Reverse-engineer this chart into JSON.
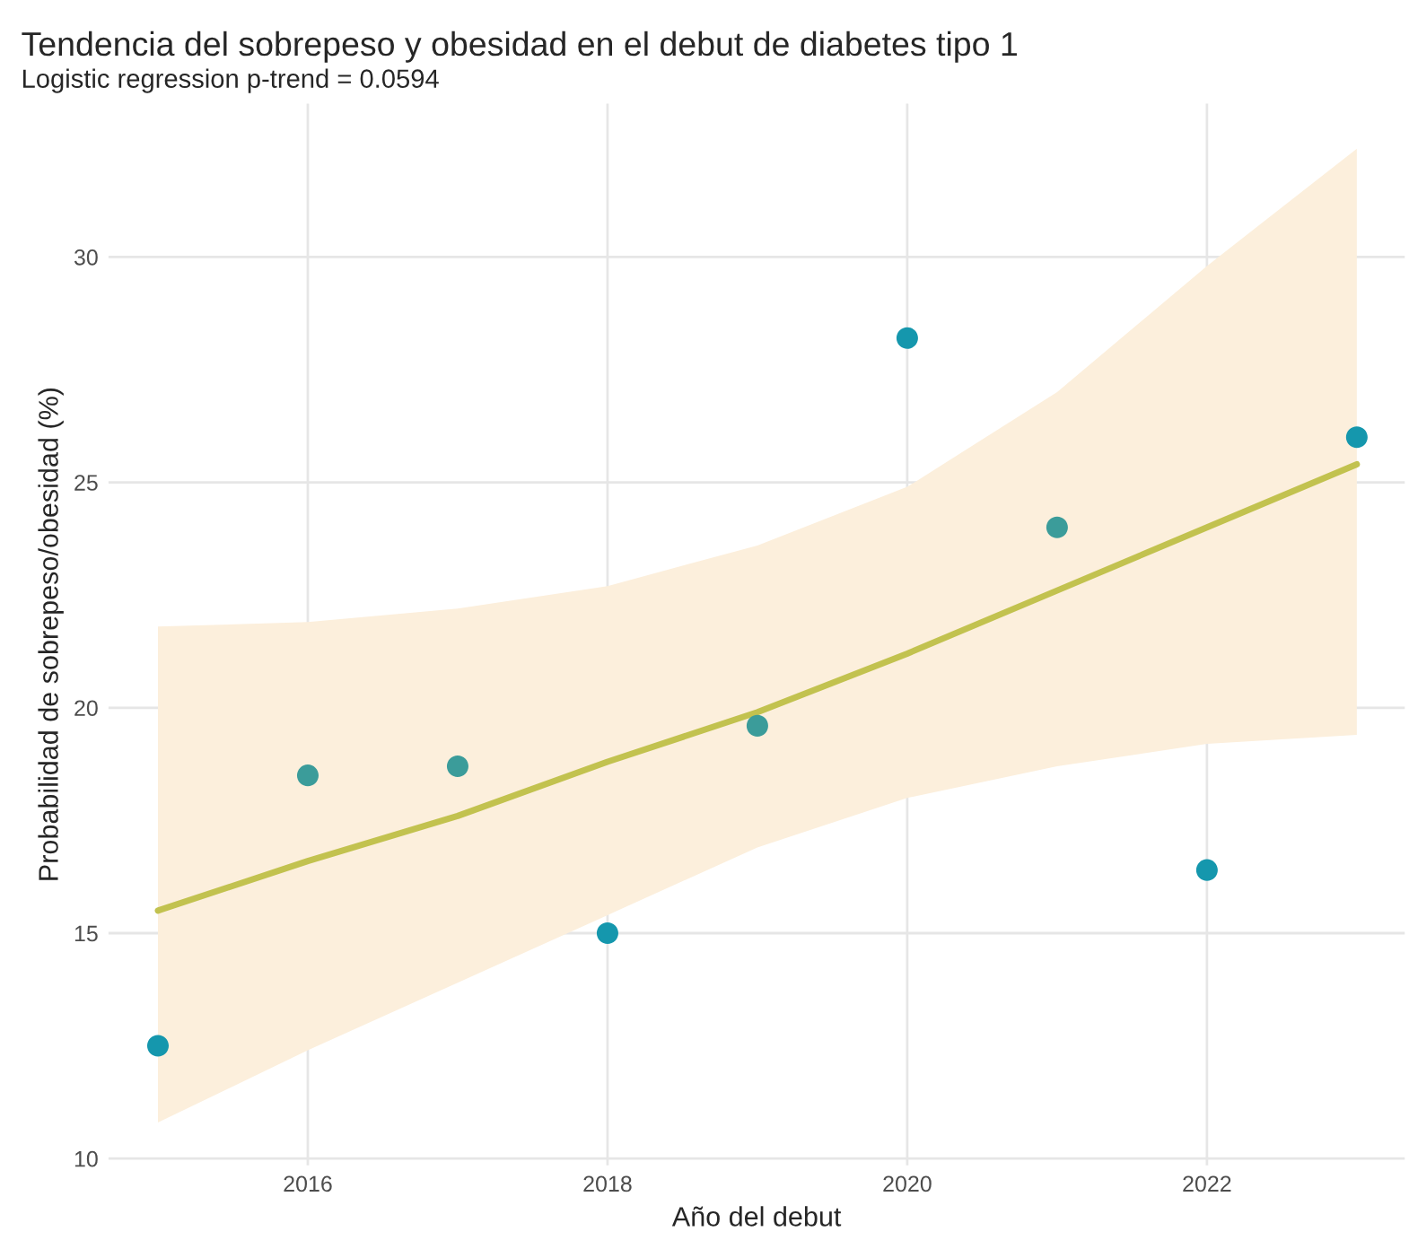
{
  "chart_data": {
    "type": "scatter",
    "title": "Tendencia del sobrepeso y obesidad en el debut de diabetes tipo 1",
    "subtitle": "Logistic regression p-trend = 0.0594",
    "xlabel": "Año del debut",
    "ylabel": "Probabilidad de sobrepeso/obesidad (%)",
    "series": [
      {
        "type": "line",
        "color": "#c2c24f",
        "x": [
          2015,
          2016,
          2017,
          2018,
          2019,
          2020,
          2021,
          2022,
          2023
        ],
        "values": [
          15.5,
          16.6,
          17.6,
          18.8,
          19.9,
          21.2,
          22.6,
          24.0,
          25.4
        ],
        "lower": [
          10.8,
          12.4,
          13.9,
          15.4,
          16.9,
          18.0,
          18.7,
          19.2,
          19.4
        ],
        "upper": [
          21.8,
          21.9,
          22.2,
          22.7,
          23.6,
          24.9,
          27.0,
          29.8,
          32.4
        ],
        "marker": "none"
      },
      {
        "x": [
          2015,
          2016,
          2017,
          2018,
          2019,
          2020,
          2021,
          2022,
          2023
        ],
        "values": [
          12.5,
          18.5,
          18.7,
          15.0,
          19.6,
          28.2,
          24.0,
          16.4,
          26.0
        ],
        "colors": [
          "#1597ad",
          "#3b9c9a",
          "#3b9c9a",
          "#1597ad",
          "#3b9c9a",
          "#1597ad",
          "#3b9c9a",
          "#1597ad",
          "#1597ad"
        ]
      }
    ],
    "xlim": [
      2014.67,
      2023.32
    ],
    "xticks": [
      2016,
      2018,
      2020,
      2022
    ],
    "ylim": [
      9.85,
      33.4
    ],
    "yticks": [
      10,
      15,
      20,
      25,
      30
    ],
    "grid": true,
    "marker": "circle"
  }
}
